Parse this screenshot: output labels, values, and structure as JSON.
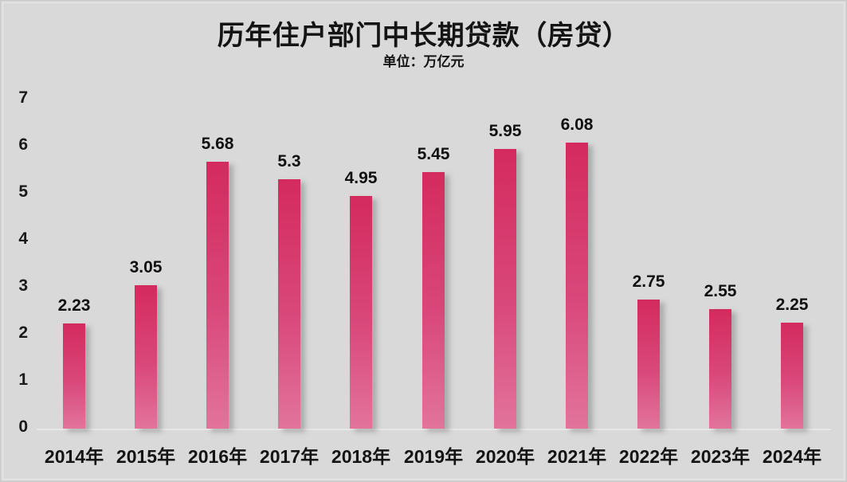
{
  "header": {
    "title": "历年住户部门中长期贷款（房贷）",
    "subtitle": "单位：万亿元"
  },
  "chart_data": {
    "type": "bar",
    "title": "历年住户部门中长期贷款（房贷）",
    "subtitle": "单位：万亿元",
    "categories": [
      "2014年",
      "2015年",
      "2016年",
      "2017年",
      "2018年",
      "2019年",
      "2020年",
      "2021年",
      "2022年",
      "2023年",
      "2024年"
    ],
    "values": [
      2.23,
      3.05,
      5.68,
      5.3,
      4.95,
      5.45,
      5.95,
      6.08,
      2.75,
      2.55,
      2.25
    ],
    "value_labels": [
      "2.23",
      "3.05",
      "5.68",
      "5.3",
      "4.95",
      "5.45",
      "5.95",
      "6.08",
      "2.75",
      "2.55",
      "2.25"
    ],
    "xlabel": "",
    "ylabel": "",
    "ylim": [
      0,
      7
    ],
    "yticks": [
      0,
      1,
      2,
      3,
      4,
      5,
      6,
      7
    ],
    "grid": false,
    "legend": false,
    "colors": {
      "background": "#d9d9d9",
      "bar_gradient_top": "#d42a5f",
      "bar_gradient_bottom": "#e2749b",
      "text": "#141414",
      "axis_line": "#e7e7e7"
    }
  }
}
